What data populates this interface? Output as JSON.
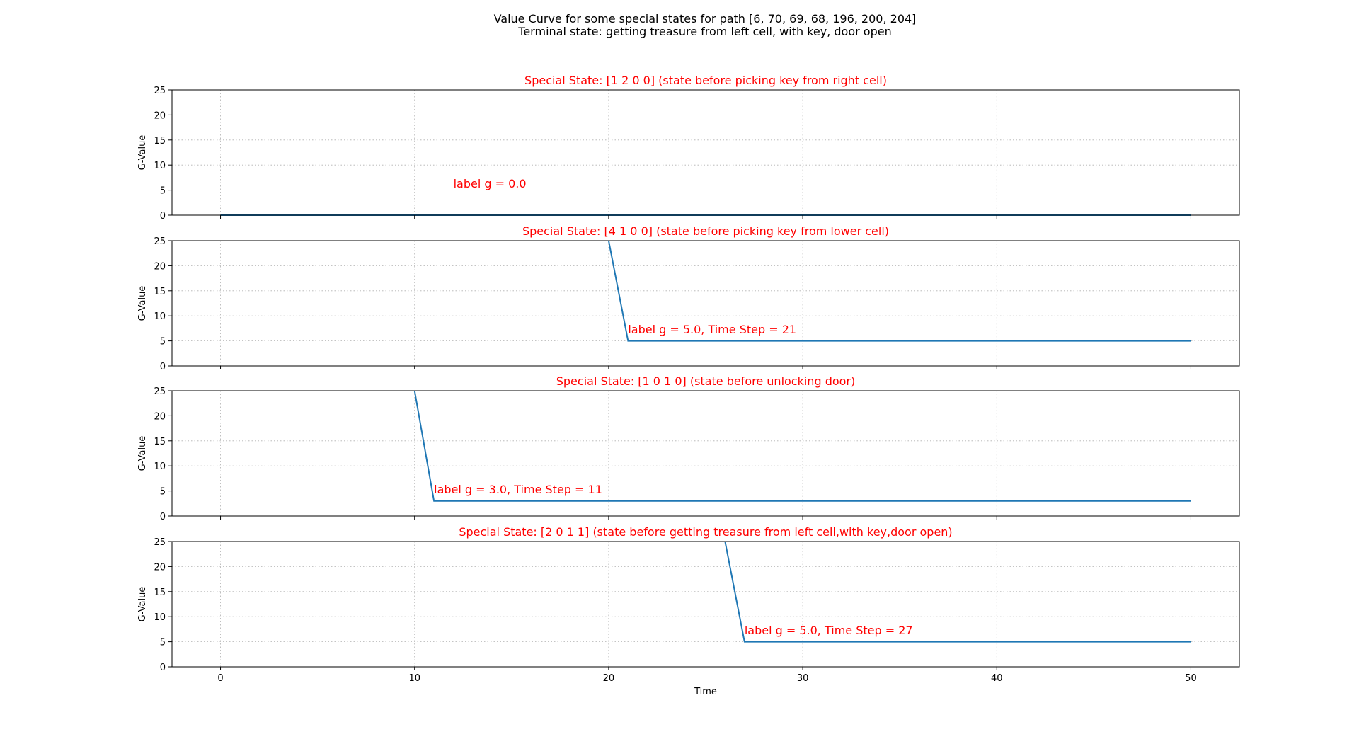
{
  "figure": {
    "title_line1": "Value Curve for some special states for path [6, 70, 69, 68, 196, 200, 204]",
    "title_line2": "Terminal state: getting treasure from left cell, with key, door open"
  },
  "colors": {
    "line": "#1f77b4",
    "annotation": "#ff0000",
    "title": "#ff0000"
  },
  "chart_data": [
    {
      "type": "line",
      "title": "Special State: [1 2 0 0] (state before picking key from right cell)",
      "xlabel": "",
      "ylabel": "G-Value",
      "xlim": [
        -2.5,
        52.5
      ],
      "ylim": [
        0,
        25
      ],
      "xticks": [
        0,
        10,
        20,
        30,
        40,
        50
      ],
      "yticks": [
        0,
        5,
        10,
        15,
        20,
        25
      ],
      "grid": true,
      "series": [
        {
          "name": "G-Value",
          "x": [
            0,
            50
          ],
          "y": [
            0,
            0
          ]
        }
      ],
      "annotation": {
        "text": "label g = 0.0",
        "x": 12,
        "y": 5.5
      }
    },
    {
      "type": "line",
      "title": "Special State: [4 1 0 0] (state before picking key from lower cell)",
      "xlabel": "",
      "ylabel": "G-Value",
      "xlim": [
        -2.5,
        52.5
      ],
      "ylim": [
        0,
        25
      ],
      "xticks": [
        0,
        10,
        20,
        30,
        40,
        50
      ],
      "yticks": [
        0,
        5,
        10,
        15,
        20,
        25
      ],
      "grid": true,
      "series": [
        {
          "name": "G-Value",
          "x": [
            20,
            21,
            50
          ],
          "y": [
            25,
            5,
            5
          ]
        }
      ],
      "annotation": {
        "text": "label g = 5.0, Time Step = 21",
        "x": 21,
        "y": 6.5
      }
    },
    {
      "type": "line",
      "title": "Special State: [1 0 1 0] (state before unlocking door)",
      "xlabel": "",
      "ylabel": "G-Value",
      "xlim": [
        -2.5,
        52.5
      ],
      "ylim": [
        0,
        25
      ],
      "xticks": [
        0,
        10,
        20,
        30,
        40,
        50
      ],
      "yticks": [
        0,
        5,
        10,
        15,
        20,
        25
      ],
      "grid": true,
      "series": [
        {
          "name": "G-Value",
          "x": [
            10,
            11,
            50
          ],
          "y": [
            25,
            3,
            3
          ]
        }
      ],
      "annotation": {
        "text": "label g = 3.0, Time Step = 11",
        "x": 11,
        "y": 4.5
      }
    },
    {
      "type": "line",
      "title": "Special State: [2 0 1 1] (state before getting treasure from left cell,with key,door open)",
      "xlabel": "Time",
      "ylabel": "G-Value",
      "xlim": [
        -2.5,
        52.5
      ],
      "ylim": [
        0,
        25
      ],
      "xticks": [
        0,
        10,
        20,
        30,
        40,
        50
      ],
      "yticks": [
        0,
        5,
        10,
        15,
        20,
        25
      ],
      "grid": true,
      "series": [
        {
          "name": "G-Value",
          "x": [
            26,
            27,
            50
          ],
          "y": [
            25,
            5,
            5
          ]
        }
      ],
      "annotation": {
        "text": "label g = 5.0, Time Step = 27",
        "x": 27,
        "y": 6.5
      }
    }
  ]
}
